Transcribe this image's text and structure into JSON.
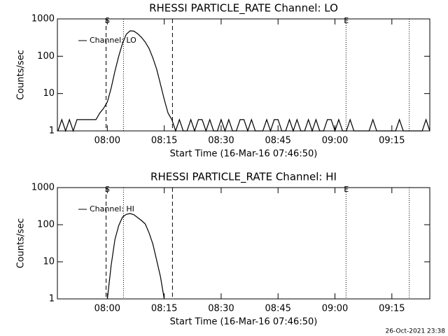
{
  "chart_data": [
    {
      "type": "line",
      "title": "RHESSI PARTICLE_RATE Channel: LO",
      "xlabel": "Start Time (16-Mar-16 07:46:50)",
      "ylabel": "Counts/sec",
      "log_scale": true,
      "legend": "upper left",
      "xlim": [
        "07:46:50",
        "09:25"
      ],
      "xticks": [
        "08:00",
        "08:15",
        "08:30",
        "08:45",
        "09:00",
        "09:15"
      ],
      "ylim": [
        1,
        1000
      ],
      "yticks": [
        1,
        10,
        100,
        1000
      ],
      "markers": [
        {
          "x": "07:59:40",
          "style": "dashed"
        },
        {
          "x": "08:04:15",
          "style": "dotted"
        },
        {
          "x": "08:17:10",
          "style": "dashed"
        },
        {
          "x": "09:02:55",
          "style": "dotted"
        },
        {
          "x": "09:19:35",
          "style": "dotted"
        }
      ],
      "annotations": [
        {
          "x": "08:00",
          "text": "S"
        },
        {
          "x": "09:03",
          "text": "E"
        }
      ],
      "x": [
        "07:47",
        "07:48",
        "07:49",
        "07:50",
        "07:51",
        "07:52",
        "07:53",
        "07:54",
        "07:55",
        "07:56",
        "07:57",
        "07:58",
        "07:59",
        "08:00",
        "08:01",
        "08:02",
        "08:03",
        "08:04",
        "08:05",
        "08:06",
        "08:07",
        "08:08",
        "08:09",
        "08:10",
        "08:11",
        "08:12",
        "08:13",
        "08:14",
        "08:15",
        "08:16",
        "08:17",
        "08:18",
        "08:19",
        "08:20",
        "08:21",
        "08:22",
        "08:23",
        "08:24",
        "08:25",
        "08:26",
        "08:27",
        "08:28",
        "08:29",
        "08:30",
        "08:31",
        "08:32",
        "08:33",
        "08:34",
        "08:35",
        "08:36",
        "08:37",
        "08:38",
        "08:39",
        "08:40",
        "08:41",
        "08:42",
        "08:43",
        "08:44",
        "08:45",
        "08:46",
        "08:47",
        "08:48",
        "08:49",
        "08:50",
        "08:51",
        "08:52",
        "08:53",
        "08:54",
        "08:55",
        "08:56",
        "08:57",
        "08:58",
        "08:59",
        "09:00",
        "09:01",
        "09:02",
        "09:03",
        "09:04",
        "09:05",
        "09:06",
        "09:07",
        "09:08",
        "09:09",
        "09:10",
        "09:11",
        "09:12",
        "09:13",
        "09:14",
        "09:15",
        "09:16",
        "09:17",
        "09:18",
        "09:19",
        "09:20",
        "09:21",
        "09:22",
        "09:23",
        "09:24",
        "09:25"
      ],
      "series": [
        {
          "name": "Channel: LO",
          "color": "#000000",
          "values": [
            1,
            2,
            1,
            2,
            1,
            2,
            2,
            2,
            2,
            2,
            2,
            3,
            4,
            6,
            14,
            40,
            100,
            220,
            390,
            480,
            470,
            400,
            320,
            240,
            160,
            90,
            45,
            18,
            7,
            3,
            2,
            1,
            2,
            1,
            1,
            2,
            1,
            2,
            2,
            1,
            2,
            1,
            1,
            2,
            1,
            2,
            1,
            1,
            2,
            2,
            1,
            2,
            1,
            1,
            1,
            2,
            1,
            2,
            2,
            1,
            1,
            2,
            1,
            2,
            1,
            1,
            2,
            1,
            2,
            1,
            1,
            2,
            2,
            1,
            2,
            1,
            1,
            2,
            1,
            1,
            1,
            1,
            1,
            2,
            1,
            1,
            1,
            1,
            1,
            1,
            2,
            1,
            1,
            1,
            1,
            1,
            1,
            2,
            1
          ]
        }
      ]
    },
    {
      "type": "line",
      "title": "RHESSI PARTICLE_RATE Channel: HI",
      "xlabel": "Start Time (16-Mar-16 07:46:50)",
      "ylabel": "Counts/sec",
      "log_scale": true,
      "legend": "upper left",
      "xlim": [
        "07:46:50",
        "09:25"
      ],
      "xticks": [
        "08:00",
        "08:15",
        "08:30",
        "08:45",
        "09:00",
        "09:15"
      ],
      "ylim": [
        1,
        1000
      ],
      "yticks": [
        1,
        10,
        100,
        1000
      ],
      "markers": [
        {
          "x": "07:59:40",
          "style": "dashed"
        },
        {
          "x": "08:04:15",
          "style": "dotted"
        },
        {
          "x": "08:17:10",
          "style": "dashed"
        },
        {
          "x": "09:02:55",
          "style": "dotted"
        },
        {
          "x": "09:19:35",
          "style": "dotted"
        }
      ],
      "annotations": [
        {
          "x": "08:00",
          "text": "S"
        },
        {
          "x": "09:03",
          "text": "E"
        }
      ],
      "x": [
        "08:00",
        "08:01",
        "08:02",
        "08:03",
        "08:04",
        "08:05",
        "08:06",
        "08:07",
        "08:08",
        "08:09",
        "08:10",
        "08:11",
        "08:12",
        "08:13",
        "08:14",
        "08:15"
      ],
      "series": [
        {
          "name": "Channel: HI",
          "color": "#000000",
          "values": [
            1,
            8,
            40,
            95,
            160,
            190,
            200,
            185,
            155,
            130,
            105,
            60,
            30,
            11,
            4,
            1
          ]
        }
      ]
    }
  ],
  "footer": "26-Oct-2021 23:38"
}
